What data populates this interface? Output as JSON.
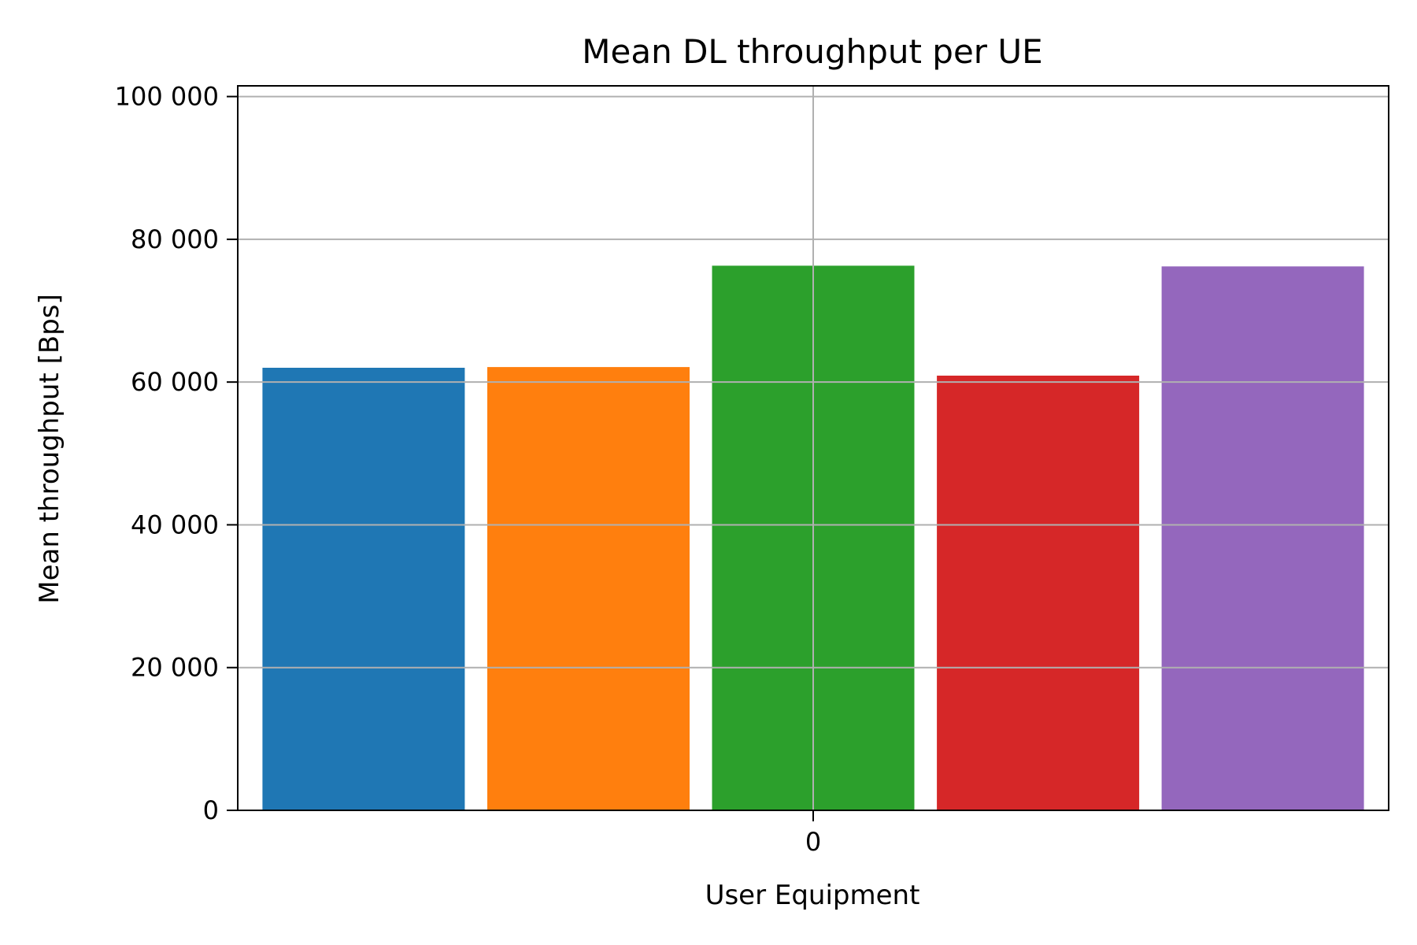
{
  "chart_data": {
    "type": "bar",
    "title": "Mean DL throughput per UE",
    "xlabel": "User Equipment",
    "ylabel": "Mean throughput [Bps]",
    "categories": [
      "0"
    ],
    "series": [
      {
        "values": [
          62000
        ],
        "color": "#1f77b4"
      },
      {
        "values": [
          62100
        ],
        "color": "#ff7f0e"
      },
      {
        "values": [
          76300
        ],
        "color": "#2ca02c"
      },
      {
        "values": [
          60900
        ],
        "color": "#d62728"
      },
      {
        "values": [
          76200
        ],
        "color": "#9467bd"
      }
    ],
    "ylim": [
      0,
      101500
    ],
    "yticks": [
      0,
      20000,
      40000,
      60000,
      80000,
      100000
    ],
    "ytick_labels": [
      "0",
      "20 000",
      "40 000",
      "60 000",
      "80 000",
      "100 000"
    ],
    "grid": true,
    "legend": "none"
  }
}
